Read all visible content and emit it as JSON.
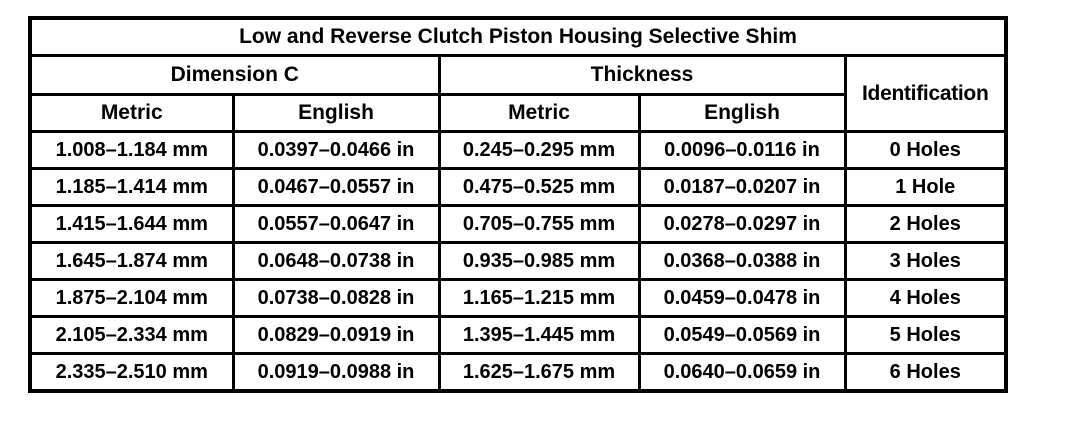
{
  "table": {
    "title": "Low and Reverse Clutch Piston Housing Selective Shim",
    "group_headers": [
      {
        "label": "Dimension C",
        "colspan": 2
      },
      {
        "label": "Thickness",
        "colspan": 2
      }
    ],
    "identification_header": "Identification",
    "sub_headers": [
      "Metric",
      "English",
      "Metric",
      "English"
    ],
    "rows": [
      [
        "1.008–1.184 mm",
        "0.0397–0.0466 in",
        "0.245–0.295 mm",
        "0.0096–0.0116 in",
        "0 Holes"
      ],
      [
        "1.185–1.414 mm",
        "0.0467–0.0557 in",
        "0.475–0.525 mm",
        "0.0187–0.0207 in",
        "1 Hole"
      ],
      [
        "1.415–1.644 mm",
        "0.0557–0.0647 in",
        "0.705–0.755 mm",
        "0.0278–0.0297 in",
        "2 Holes"
      ],
      [
        "1.645–1.874 mm",
        "0.0648–0.0738 in",
        "0.935–0.985 mm",
        "0.0368–0.0388 in",
        "3 Holes"
      ],
      [
        "1.875–2.104 mm",
        "0.0738–0.0828 in",
        "1.165–1.215 mm",
        "0.0459–0.0478 in",
        "4 Holes"
      ],
      [
        "2.105–2.334 mm",
        "0.0829–0.0919 in",
        "1.395–1.445 mm",
        "0.0549–0.0569 in",
        "5 Holes"
      ],
      [
        "2.335–2.510 mm",
        "0.0919–0.0988 in",
        "1.625–1.675 mm",
        "0.0640–0.0659 in",
        "6 Holes"
      ]
    ],
    "colors": {
      "border": "#000000",
      "background": "#ffffff",
      "text": "#000000"
    }
  }
}
